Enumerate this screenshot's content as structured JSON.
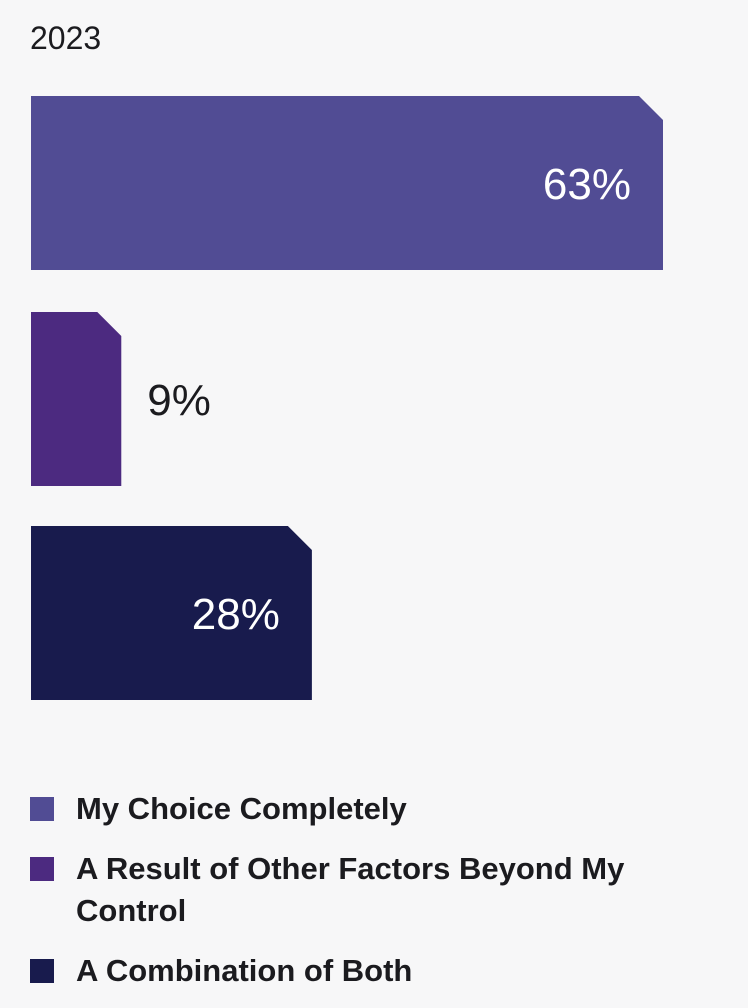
{
  "chart_data": {
    "type": "bar",
    "orientation": "horizontal",
    "title": "2023",
    "categories": [
      "My Choice Completely",
      "A Result of Other Factors Beyond My Control",
      "A Combination of Both"
    ],
    "values": [
      63,
      9,
      28
    ],
    "labels": [
      "63%",
      "9%",
      "28%"
    ],
    "colors": [
      "#514c94",
      "#4c2a80",
      "#181b4d"
    ],
    "xlim": [
      0,
      100
    ],
    "grid": false,
    "legend_position": "bottom"
  },
  "legend": [
    {
      "label": "My Choice Completely",
      "color": "#514c94"
    },
    {
      "label": "A Result of Other Factors Beyond My Control",
      "color": "#4c2a80"
    },
    {
      "label": "A Combination of Both",
      "color": "#181b4d"
    }
  ]
}
